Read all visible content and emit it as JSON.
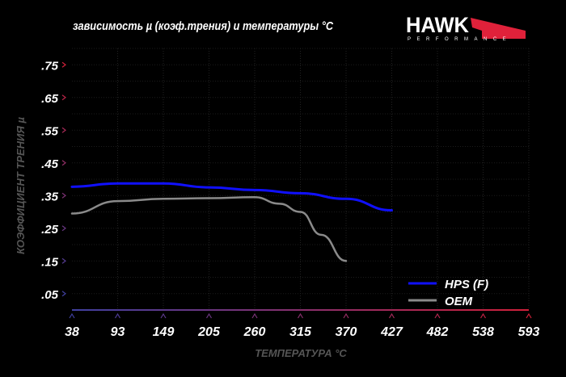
{
  "title": "зависимость µ (коэф.трения) и температуры °C",
  "logo": {
    "brand": "HAWK",
    "sub": "PERFORMANCE",
    "accent": "#e0213a"
  },
  "chart_data": {
    "type": "line",
    "title": "зависимость µ (коэф.трения) и температуры °C",
    "xlabel": "ТЕМПЕРАТУРА °C",
    "ylabel": "КОЭФФИЦИЕНТ ТРЕНИЯ µ",
    "x_ticks": [
      "38",
      "93",
      "149",
      "205",
      "260",
      "315",
      "370",
      "427",
      "482",
      "538",
      "593"
    ],
    "y_ticks": [
      ".75",
      ".65",
      ".55",
      ".45",
      ".35",
      ".25",
      ".15",
      ".05"
    ],
    "y_tick_values": [
      0.75,
      0.65,
      0.55,
      0.45,
      0.35,
      0.25,
      0.15,
      0.05
    ],
    "xlim": [
      38,
      593
    ],
    "ylim": [
      0,
      0.8
    ],
    "grid": true,
    "legend_position": "bottom-right",
    "series": [
      {
        "name": "HPS (F)",
        "color": "#1010ff",
        "x": [
          38,
          93,
          149,
          205,
          260,
          315,
          370,
          427
        ],
        "y": [
          0.377,
          0.387,
          0.387,
          0.375,
          0.367,
          0.357,
          0.34,
          0.305
        ]
      },
      {
        "name": "OEM",
        "color": "#8a8a8a",
        "x": [
          38,
          93,
          149,
          205,
          260,
          290,
          315,
          340,
          370
        ],
        "y": [
          0.295,
          0.333,
          0.34,
          0.342,
          0.345,
          0.325,
          0.3,
          0.23,
          0.15
        ]
      }
    ]
  }
}
